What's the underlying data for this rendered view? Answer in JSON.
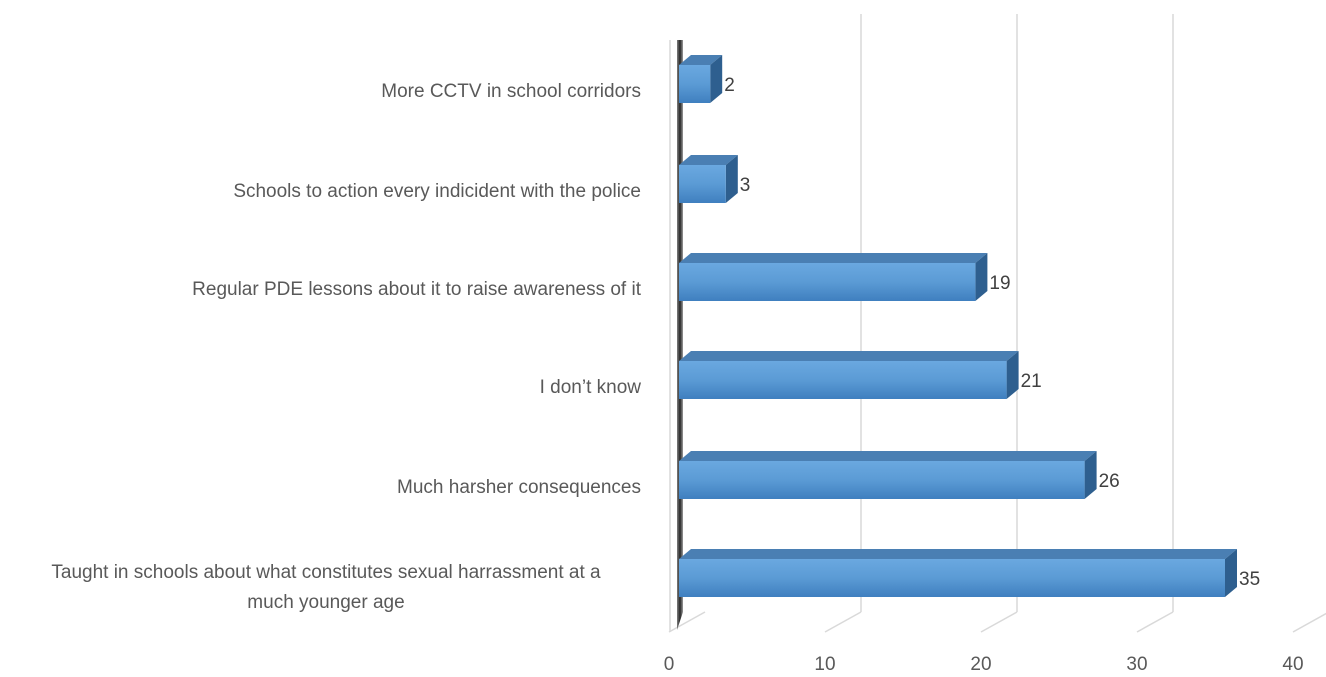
{
  "chart_data": {
    "type": "bar",
    "orientation": "horizontal",
    "style": "3d",
    "categories": [
      "More CCTV in school corridors",
      "Schools to action every indicident with the police",
      "Regular PDE lessons about it to raise awareness of it",
      "I don’t know",
      "Much harsher consequences",
      "Taught in schools about what constitutes sexual harrassment at a much younger age"
    ],
    "values": [
      2,
      3,
      19,
      21,
      26,
      35
    ],
    "xlim": [
      0,
      40
    ],
    "xticks": [
      0,
      10,
      20,
      30,
      40
    ],
    "grid": true,
    "legend": false,
    "title": "",
    "xlabel": "",
    "ylabel": "",
    "colors": {
      "bar_front": "#5b9bd5",
      "bar_top": "#4a7fb3",
      "bar_side": "#2e5f8f",
      "grid": "#d9d9d9",
      "wall": "#404040",
      "text": "#595959"
    }
  }
}
